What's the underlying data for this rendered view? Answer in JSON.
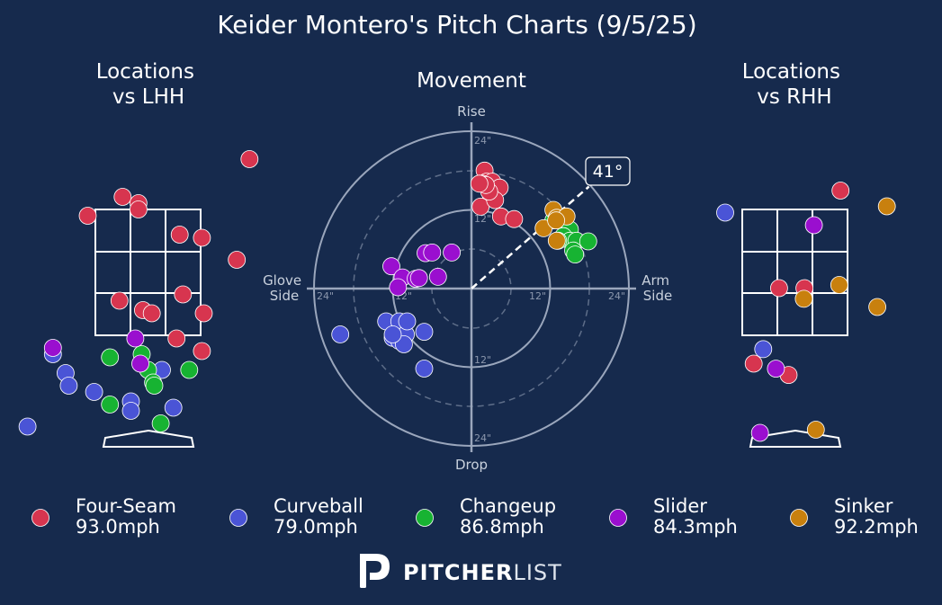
{
  "title": "Keider Montero's Pitch Charts (9/5/25)",
  "panels": {
    "left_title": [
      "Locations",
      "vs LHH"
    ],
    "center_title": "Movement",
    "right_title": [
      "Locations",
      "vs RHH"
    ]
  },
  "movement_labels": {
    "top": "Rise",
    "bottom": "Drop",
    "left": [
      "Glove",
      "Side"
    ],
    "right": [
      "Arm",
      "Side"
    ],
    "rings": [
      "12\"",
      "24\""
    ],
    "arm_angle": "41°"
  },
  "colors": {
    "background": "#162a4d",
    "Four-Seam": "#d7354f",
    "Curveball": "#4a54d6",
    "Changeup": "#17b332",
    "Slider": "#9a0fcf",
    "Sinker": "#c8800e"
  },
  "legend": [
    {
      "pitch": "Four-Seam",
      "velo": "93.0mph"
    },
    {
      "pitch": "Curveball",
      "velo": "79.0mph"
    },
    {
      "pitch": "Changeup",
      "velo": "86.8mph"
    },
    {
      "pitch": "Slider",
      "velo": "84.3mph"
    },
    {
      "pitch": "Sinker",
      "velo": "92.2mph"
    }
  ],
  "brand": {
    "bold": "PITCHER",
    "light": "LIST",
    "icon": "pitcherlist-logo-icon"
  },
  "chart_data": [
    {
      "type": "scatter",
      "panel": "locations-vs-lhh",
      "xlim": [
        -2.5,
        2.5
      ],
      "ylim": [
        -0.3,
        5.0
      ],
      "strike_zone": {
        "x": [
          -0.83,
          0.83
        ],
        "z": [
          1.5,
          3.5
        ]
      },
      "series": [
        {
          "name": "Four-Seam",
          "points": [
            [
              1.6,
              4.3
            ],
            [
              -0.4,
              3.7
            ],
            [
              -0.15,
              3.6
            ],
            [
              -0.15,
              3.5
            ],
            [
              -0.95,
              3.4
            ],
            [
              0.5,
              3.1
            ],
            [
              0.85,
              3.05
            ],
            [
              1.4,
              2.7
            ],
            [
              0.55,
              2.15
            ],
            [
              -0.45,
              2.05
            ],
            [
              -0.08,
              1.9
            ],
            [
              0.06,
              1.85
            ],
            [
              0.88,
              1.85
            ],
            [
              0.45,
              1.45
            ],
            [
              0.85,
              1.25
            ]
          ]
        },
        {
          "name": "Curveball",
          "points": [
            [
              -1.9,
              0.05
            ],
            [
              -1.5,
              1.2
            ],
            [
              -1.3,
              0.9
            ],
            [
              -1.25,
              0.7
            ],
            [
              -0.85,
              0.6
            ],
            [
              -0.27,
              0.45
            ],
            [
              0.22,
              0.95
            ],
            [
              0.4,
              0.35
            ],
            [
              -0.27,
              0.3
            ]
          ]
        },
        {
          "name": "Changeup",
          "points": [
            [
              -0.6,
              1.15
            ],
            [
              -0.1,
              1.2
            ],
            [
              0.0,
              0.95
            ],
            [
              0.08,
              0.75
            ],
            [
              0.1,
              0.7
            ],
            [
              0.65,
              0.95
            ],
            [
              -0.6,
              0.4
            ],
            [
              0.2,
              0.1
            ]
          ]
        },
        {
          "name": "Slider",
          "points": [
            [
              -1.5,
              1.3
            ],
            [
              -0.2,
              1.45
            ],
            [
              -0.12,
              1.05
            ]
          ]
        }
      ]
    },
    {
      "type": "scatter",
      "panel": "movement",
      "xlabel": "Glove Side / Arm Side",
      "ylabel": "Rise / Drop",
      "xlim": [
        -24,
        24
      ],
      "ylim": [
        -24,
        24
      ],
      "arm_angle_deg": 41,
      "series": [
        {
          "name": "Four-Seam",
          "points": [
            [
              2,
              18
            ],
            [
              2.3,
              16.3
            ],
            [
              1.6,
              16
            ],
            [
              3.2,
              16.3
            ],
            [
              4.3,
              15.4
            ],
            [
              3,
              14
            ],
            [
              1.4,
              12.5
            ],
            [
              3.6,
              13.5
            ],
            [
              2.7,
              14.8
            ],
            [
              2.2,
              15.8
            ],
            [
              4.5,
              11
            ],
            [
              6.5,
              10.6
            ],
            [
              1.2,
              16
            ]
          ]
        },
        {
          "name": "Curveball",
          "points": [
            [
              -20,
              -7
            ],
            [
              -13,
              -5
            ],
            [
              -12,
              -7.5
            ],
            [
              -11,
              -5
            ],
            [
              -11,
              -8
            ],
            [
              -10,
              -7
            ],
            [
              -10.3,
              -8.5
            ],
            [
              -9.8,
              -5
            ],
            [
              -7.2,
              -6.6
            ],
            [
              -7.2,
              -12.2
            ],
            [
              -12,
              -7
            ]
          ]
        },
        {
          "name": "Changeup",
          "points": [
            [
              12.5,
              10.4
            ],
            [
              15,
              9
            ],
            [
              14,
              8
            ],
            [
              15,
              7.3
            ],
            [
              16,
              7.3
            ],
            [
              13.2,
              7.3
            ],
            [
              15.5,
              5.8
            ],
            [
              15.8,
              5.2
            ],
            [
              17.8,
              7.2
            ]
          ]
        },
        {
          "name": "Slider",
          "points": [
            [
              -12.2,
              3.4
            ],
            [
              -10.5,
              1.7
            ],
            [
              -11.2,
              0.2
            ],
            [
              -8.5,
              1.5
            ],
            [
              -8,
              1.6
            ],
            [
              -5.1,
              1.8
            ],
            [
              -7,
              5.4
            ],
            [
              -6,
              5.5
            ],
            [
              -3,
              5.5
            ]
          ]
        },
        {
          "name": "Sinker",
          "points": [
            [
              11,
              9.2
            ],
            [
              12.5,
              12
            ],
            [
              13,
              10.8
            ],
            [
              14.5,
              11
            ],
            [
              12.9,
              10.4
            ],
            [
              13,
              7.3
            ]
          ]
        }
      ]
    },
    {
      "type": "scatter",
      "panel": "locations-vs-rhh",
      "xlim": [
        -2.5,
        2.5
      ],
      "ylim": [
        -0.3,
        5.0
      ],
      "strike_zone": {
        "x": [
          -0.83,
          0.83
        ],
        "z": [
          1.5,
          3.5
        ]
      },
      "series": [
        {
          "name": "Four-Seam",
          "points": [
            [
              0.72,
              3.8
            ],
            [
              -0.25,
              2.25
            ],
            [
              0.15,
              2.25
            ],
            [
              -0.65,
              1.05
            ],
            [
              -0.1,
              0.87
            ]
          ]
        },
        {
          "name": "Curveball",
          "points": [
            [
              -1.1,
              3.45
            ],
            [
              -0.5,
              1.28
            ]
          ]
        },
        {
          "name": "Changeup",
          "points": []
        },
        {
          "name": "Slider",
          "points": [
            [
              0.3,
              3.25
            ],
            [
              -0.3,
              0.97
            ],
            [
              -0.55,
              -0.05
            ]
          ]
        },
        {
          "name": "Sinker",
          "points": [
            [
              1.45,
              3.55
            ],
            [
              0.7,
              2.3
            ],
            [
              0.14,
              2.08
            ],
            [
              1.3,
              1.95
            ],
            [
              0.33,
              0.0
            ]
          ]
        }
      ]
    }
  ]
}
